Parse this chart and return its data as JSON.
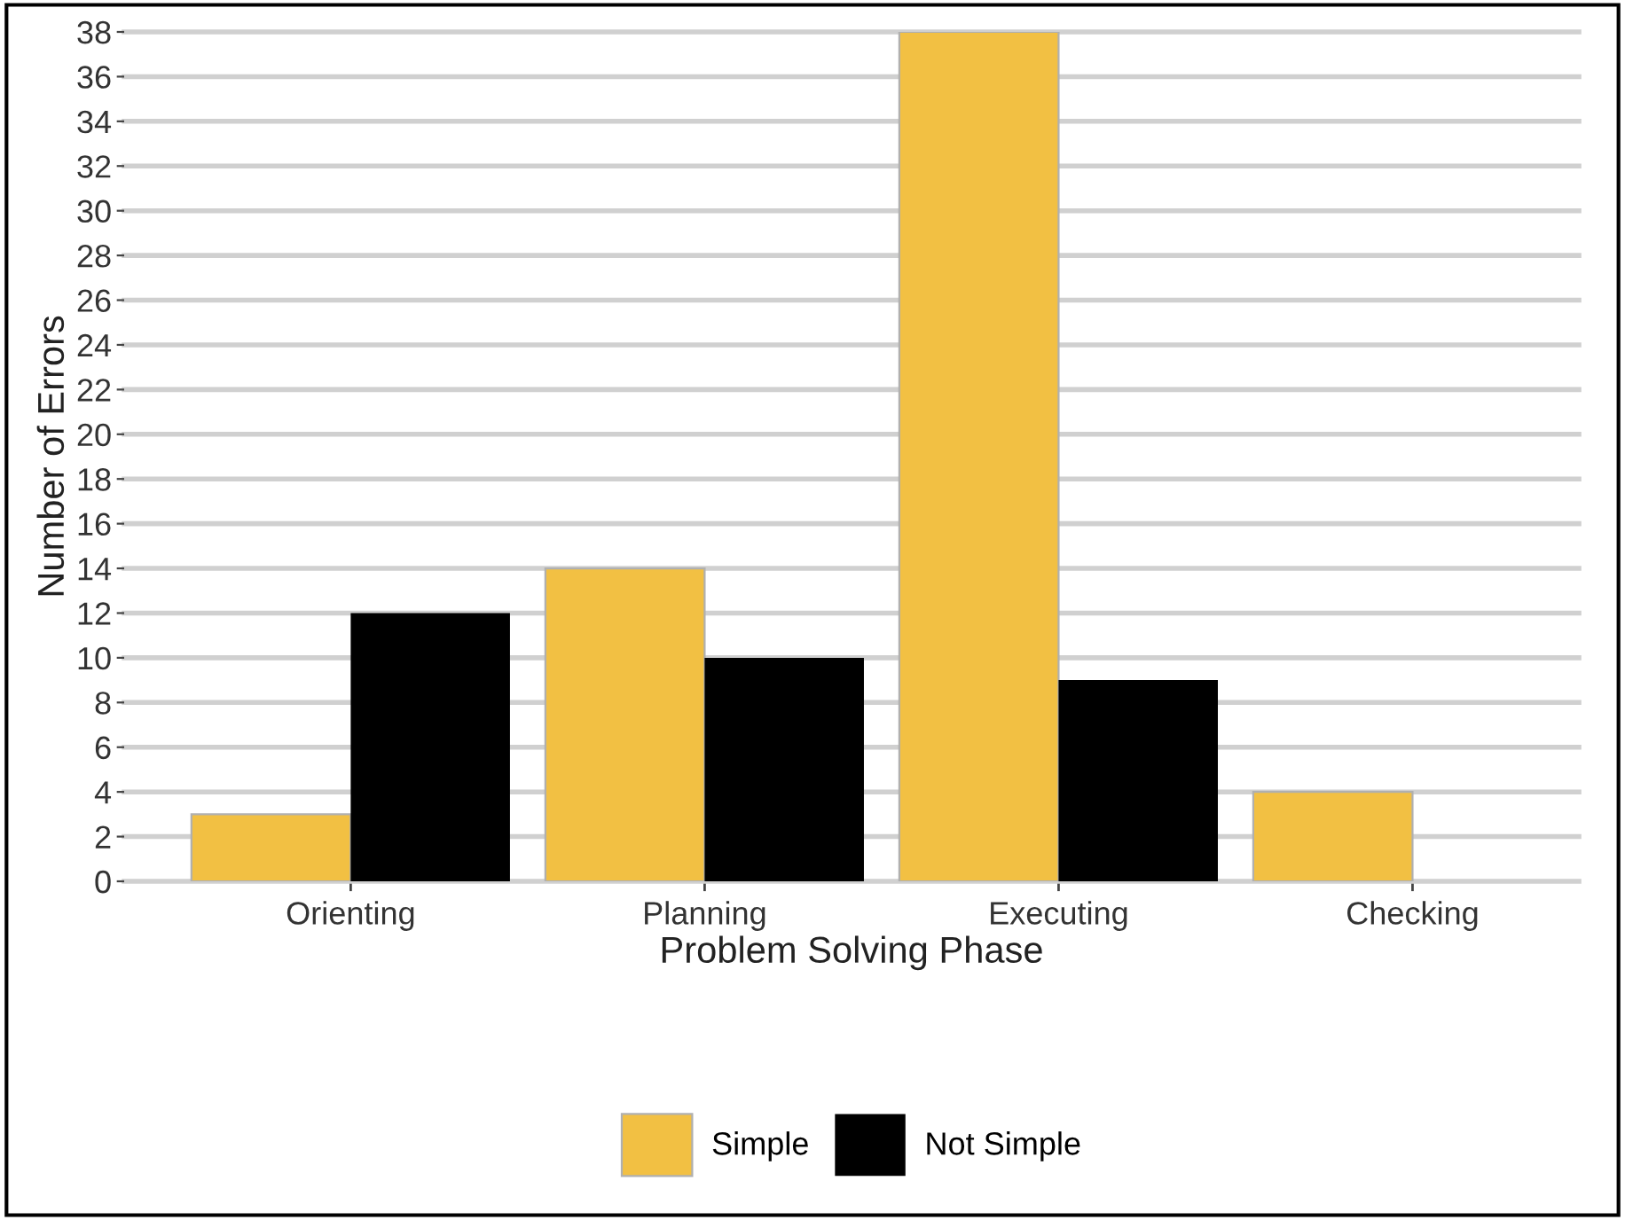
{
  "chart_data": {
    "type": "bar",
    "xlabel": "Problem Solving Phase",
    "ylabel": "Number of Errors",
    "categories": [
      "Orienting",
      "Planning",
      "Executing",
      "Checking"
    ],
    "series": [
      {
        "name": "Simple",
        "color": "#f2c043",
        "values": [
          3,
          14,
          38,
          4
        ]
      },
      {
        "name": "Not Simple",
        "color": "#000000",
        "values": [
          12,
          10,
          9,
          0
        ]
      }
    ],
    "ylim": [
      0,
      38
    ],
    "yticks": [
      0,
      2,
      4,
      6,
      8,
      10,
      12,
      14,
      16,
      18,
      20,
      22,
      24,
      26,
      28,
      30,
      32,
      34,
      36,
      38
    ],
    "grid": "y",
    "legend": "bottom"
  }
}
